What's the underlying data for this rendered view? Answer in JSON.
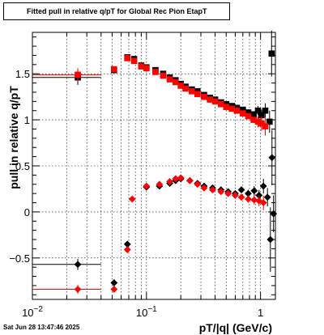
{
  "title": "Fitted pull in relative q/pT for Global Rec Pion EtapT",
  "datestamp": "Sat Jun 28 13:47:46 2025",
  "chart_data": {
    "type": "scatter",
    "title": "Fitted pull in relative q/pT for Global Rec Pion EtapT",
    "xlabel": "pT/|q| (GeV/c)",
    "ylabel": "pull in relative q/pT",
    "xscale": "log",
    "xlim": [
      0.01,
      1.35
    ],
    "ylim": [
      -0.95,
      1.95
    ],
    "grid": true,
    "x_tick_labels": [
      {
        "value": 0.01,
        "label": "10",
        "exp": "−2"
      },
      {
        "value": 0.1,
        "label": "10",
        "exp": "−1"
      },
      {
        "value": 1,
        "label": "1",
        "exp": ""
      }
    ],
    "y_tick_labels": [
      {
        "value": -0.5,
        "label": "−0.5"
      },
      {
        "value": 0,
        "label": "0"
      },
      {
        "value": 0.5,
        "label": "0.5"
      },
      {
        "value": 1,
        "label": "1"
      },
      {
        "value": 1.5,
        "label": "1.5"
      }
    ],
    "series": [
      {
        "marker": "square",
        "color": "#000000",
        "points": [
          {
            "x": 0.025,
            "y": 1.46,
            "xlo": 0.01,
            "xhi": 0.04,
            "err": 0.08
          },
          {
            "x": 0.052,
            "y": 1.54,
            "err": 0.03
          },
          {
            "x": 0.068,
            "y": 1.68,
            "err": 0.02
          },
          {
            "x": 0.078,
            "y": 1.66
          },
          {
            "x": 0.09,
            "y": 1.59
          },
          {
            "x": 0.1,
            "y": 1.57
          },
          {
            "x": 0.12,
            "y": 1.54
          },
          {
            "x": 0.14,
            "y": 1.5
          },
          {
            "x": 0.16,
            "y": 1.46
          },
          {
            "x": 0.18,
            "y": 1.43
          },
          {
            "x": 0.2,
            "y": 1.39
          },
          {
            "x": 0.22,
            "y": 1.36
          },
          {
            "x": 0.25,
            "y": 1.33
          },
          {
            "x": 0.28,
            "y": 1.31
          },
          {
            "x": 0.32,
            "y": 1.27
          },
          {
            "x": 0.36,
            "y": 1.24
          },
          {
            "x": 0.4,
            "y": 1.22
          },
          {
            "x": 0.45,
            "y": 1.19
          },
          {
            "x": 0.5,
            "y": 1.17
          },
          {
            "x": 0.56,
            "y": 1.15
          },
          {
            "x": 0.62,
            "y": 1.13
          },
          {
            "x": 0.7,
            "y": 1.11
          },
          {
            "x": 0.78,
            "y": 1.08
          },
          {
            "x": 0.87,
            "y": 1.06
          },
          {
            "x": 0.95,
            "y": 1.1,
            "err": 0.05
          },
          {
            "x": 1.02,
            "y": 1.05,
            "err": 0.06
          },
          {
            "x": 1.1,
            "y": 1.1,
            "err": 0.08
          },
          {
            "x": 1.2,
            "y": 0.98,
            "err": 0.12
          },
          {
            "x": 1.25,
            "y": 1.72,
            "err": 0.25
          }
        ]
      },
      {
        "marker": "square",
        "color": "#ff0000",
        "points": [
          {
            "x": 0.025,
            "y": 1.49,
            "xlo": 0.01,
            "xhi": 0.04,
            "err": 0.07
          },
          {
            "x": 0.052,
            "y": 1.55,
            "err": 0.03
          },
          {
            "x": 0.068,
            "y": 1.67,
            "err": 0.02
          },
          {
            "x": 0.078,
            "y": 1.64
          },
          {
            "x": 0.09,
            "y": 1.58
          },
          {
            "x": 0.1,
            "y": 1.56
          },
          {
            "x": 0.12,
            "y": 1.52
          },
          {
            "x": 0.14,
            "y": 1.48
          },
          {
            "x": 0.16,
            "y": 1.44
          },
          {
            "x": 0.18,
            "y": 1.41
          },
          {
            "x": 0.2,
            "y": 1.37
          },
          {
            "x": 0.22,
            "y": 1.34
          },
          {
            "x": 0.25,
            "y": 1.31
          },
          {
            "x": 0.28,
            "y": 1.28
          },
          {
            "x": 0.32,
            "y": 1.25
          },
          {
            "x": 0.36,
            "y": 1.22
          },
          {
            "x": 0.4,
            "y": 1.2
          },
          {
            "x": 0.45,
            "y": 1.17
          },
          {
            "x": 0.5,
            "y": 1.14
          },
          {
            "x": 0.56,
            "y": 1.12
          },
          {
            "x": 0.62,
            "y": 1.1
          },
          {
            "x": 0.7,
            "y": 1.07
          },
          {
            "x": 0.78,
            "y": 1.04
          },
          {
            "x": 0.87,
            "y": 1.0
          },
          {
            "x": 0.95,
            "y": 0.98,
            "err": 0.06
          },
          {
            "x": 1.02,
            "y": 0.96,
            "err": 0.08
          },
          {
            "x": 1.1,
            "y": 0.93,
            "err": 0.1
          }
        ]
      },
      {
        "marker": "diamond",
        "color": "#000000",
        "points": [
          {
            "x": 0.025,
            "y": -0.57,
            "xlo": 0.01,
            "xhi": 0.04,
            "err": 0.06
          },
          {
            "x": 0.052,
            "y": -0.77,
            "err": 0.04
          },
          {
            "x": 0.068,
            "y": -0.35,
            "err": 0.03
          },
          {
            "x": 0.1,
            "y": 0.27
          },
          {
            "x": 0.13,
            "y": 0.28
          },
          {
            "x": 0.16,
            "y": 0.31
          },
          {
            "x": 0.18,
            "y": 0.34
          },
          {
            "x": 0.2,
            "y": 0.36
          },
          {
            "x": 0.24,
            "y": 0.34
          },
          {
            "x": 0.28,
            "y": 0.31
          },
          {
            "x": 0.32,
            "y": 0.28
          },
          {
            "x": 0.38,
            "y": 0.26
          },
          {
            "x": 0.45,
            "y": 0.24
          },
          {
            "x": 0.52,
            "y": 0.22
          },
          {
            "x": 0.6,
            "y": 0.2
          },
          {
            "x": 0.68,
            "y": 0.24
          },
          {
            "x": 0.78,
            "y": 0.2,
            "err": 0.04
          },
          {
            "x": 0.88,
            "y": 0.23,
            "err": 0.05
          },
          {
            "x": 0.97,
            "y": 0.18,
            "err": 0.06
          },
          {
            "x": 1.06,
            "y": 0.28,
            "err": 0.08
          },
          {
            "x": 1.15,
            "y": 0.16,
            "err": 0.1
          },
          {
            "x": 1.22,
            "y": -0.3,
            "err": 0.35
          },
          {
            "x": 1.26,
            "y": 0.59,
            "err": 0.3
          },
          {
            "x": 1.3,
            "y": -0.02,
            "err": 0.2
          }
        ]
      },
      {
        "marker": "diamond",
        "color": "#ff0000",
        "points": [
          {
            "x": 0.025,
            "y": -0.84,
            "xlo": 0.01,
            "xhi": 0.04,
            "err": 0.05
          },
          {
            "x": 0.052,
            "y": -0.84,
            "err": 0.03
          },
          {
            "x": 0.068,
            "y": -0.41,
            "err": 0.03
          },
          {
            "x": 0.075,
            "y": 0.14
          },
          {
            "x": 0.1,
            "y": 0.28
          },
          {
            "x": 0.13,
            "y": 0.3
          },
          {
            "x": 0.16,
            "y": 0.33
          },
          {
            "x": 0.18,
            "y": 0.36
          },
          {
            "x": 0.2,
            "y": 0.37
          },
          {
            "x": 0.24,
            "y": 0.34
          },
          {
            "x": 0.28,
            "y": 0.3
          },
          {
            "x": 0.32,
            "y": 0.26
          },
          {
            "x": 0.38,
            "y": 0.24
          },
          {
            "x": 0.45,
            "y": 0.22
          },
          {
            "x": 0.52,
            "y": 0.2
          },
          {
            "x": 0.6,
            "y": 0.18
          },
          {
            "x": 0.68,
            "y": 0.16
          },
          {
            "x": 0.78,
            "y": 0.14,
            "err": 0.04
          },
          {
            "x": 0.88,
            "y": 0.13,
            "err": 0.05
          },
          {
            "x": 0.97,
            "y": 0.12,
            "err": 0.06
          },
          {
            "x": 1.06,
            "y": 0.1,
            "err": 0.08
          }
        ]
      }
    ]
  }
}
